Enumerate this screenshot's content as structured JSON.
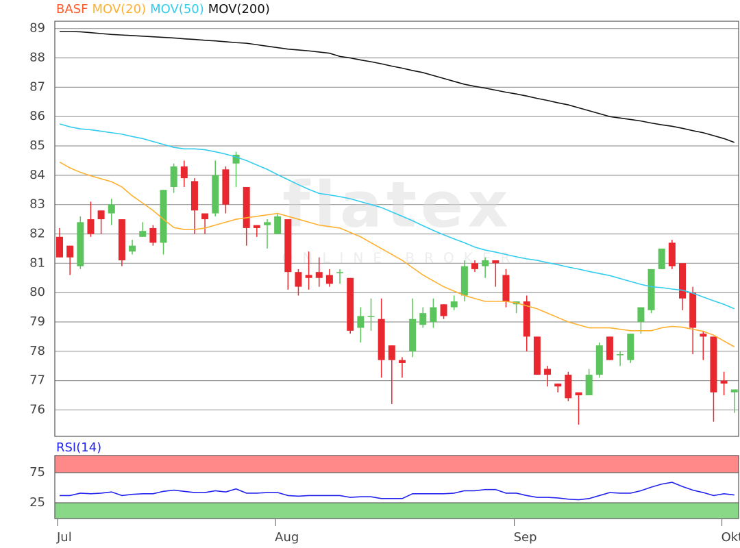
{
  "chart_data": [
    {
      "type": "candlestick",
      "watermark": {
        "brand": "flatex",
        "tagline": "ONLINE BROKER"
      },
      "categories": [
        "Jul",
        null,
        null,
        null,
        null,
        null,
        null,
        null,
        null,
        null,
        null,
        null,
        null,
        null,
        null,
        null,
        null,
        null,
        null,
        null,
        null,
        "Aug",
        null,
        null,
        null,
        null,
        null,
        null,
        null,
        null,
        null,
        null,
        null,
        null,
        null,
        null,
        null,
        null,
        null,
        null,
        null,
        null,
        null,
        null,
        "Sep",
        null,
        null,
        null,
        null,
        null,
        null,
        null,
        null,
        null,
        null,
        null,
        null,
        null,
        null,
        null,
        null,
        null,
        null,
        null,
        "Okt",
        null
      ],
      "ylim": [
        75.1,
        89.25
      ],
      "yticks": [
        76,
        77,
        78,
        79,
        80,
        81,
        82,
        83,
        84,
        85,
        86,
        87,
        88,
        89
      ],
      "grid": true,
      "series": [
        {
          "name": "BASF",
          "color": "#ff5a2a",
          "up_color": "#5cc45c",
          "down_color": "#e8282e",
          "open": [
            81.9,
            81.6,
            80.9,
            82.5,
            82.8,
            82.7,
            82.5,
            81.4,
            81.9,
            82.2,
            81.7,
            83.6,
            84.3,
            83.8,
            82.7,
            82.7,
            84.2,
            84.4,
            83.6,
            82.3,
            82.3,
            82.0,
            82.5,
            80.7,
            80.6,
            80.7,
            80.6,
            80.7,
            80.5,
            78.8,
            79.2,
            79.1,
            78.2,
            77.7,
            78.0,
            78.9,
            79.0,
            79.6,
            79.5,
            79.9,
            81.0,
            80.9,
            81.1,
            80.6,
            79.6,
            79.7,
            78.5,
            77.4,
            76.9,
            77.2,
            76.6,
            76.5,
            77.2,
            78.5,
            77.9,
            77.7,
            79.0,
            79.4,
            80.8,
            81.7,
            81.0,
            80.0,
            78.6,
            78.5,
            77.0,
            76.6
          ],
          "high": [
            82.2,
            81.6,
            82.6,
            83.1,
            82.8,
            83.2,
            82.5,
            81.8,
            82.4,
            82.3,
            83.5,
            84.4,
            84.5,
            83.9,
            82.7,
            84.5,
            84.3,
            84.8,
            83.6,
            82.3,
            82.5,
            82.7,
            82.5,
            80.8,
            81.4,
            81.2,
            80.8,
            80.8,
            80.5,
            79.5,
            79.8,
            79.8,
            78.2,
            77.8,
            79.8,
            79.5,
            79.8,
            79.6,
            79.9,
            81.1,
            81.1,
            81.2,
            81.1,
            80.8,
            79.7,
            79.9,
            78.5,
            77.5,
            76.9,
            77.3,
            76.6,
            77.4,
            78.3,
            78.5,
            78.0,
            78.6,
            79.5,
            80.8,
            81.5,
            81.8,
            81.0,
            80.2,
            78.7,
            78.5,
            77.3,
            76.7
          ],
          "low": [
            81.2,
            80.6,
            80.8,
            81.9,
            82.0,
            82.3,
            80.9,
            81.3,
            81.9,
            81.6,
            81.3,
            83.4,
            83.6,
            82.0,
            82.0,
            82.6,
            82.7,
            83.6,
            81.6,
            81.9,
            81.5,
            82.0,
            80.1,
            79.9,
            80.1,
            80.2,
            80.2,
            80.3,
            78.6,
            78.3,
            78.7,
            77.1,
            76.2,
            77.1,
            77.8,
            78.8,
            78.8,
            79.1,
            79.4,
            79.7,
            80.7,
            80.5,
            80.2,
            79.5,
            79.3,
            78.0,
            77.2,
            76.8,
            76.6,
            76.3,
            75.5,
            76.5,
            77.1,
            77.7,
            77.5,
            77.6,
            78.6,
            79.3,
            80.8,
            80.8,
            79.4,
            77.9,
            77.7,
            75.6,
            76.5,
            75.9
          ],
          "close": [
            81.2,
            81.2,
            82.4,
            82.0,
            82.5,
            83.0,
            81.1,
            81.6,
            82.1,
            81.7,
            83.5,
            84.3,
            83.9,
            82.8,
            82.5,
            84.0,
            83.0,
            84.7,
            82.2,
            82.2,
            82.4,
            82.6,
            80.7,
            80.2,
            80.5,
            80.5,
            80.3,
            80.7,
            78.7,
            79.2,
            79.2,
            77.7,
            77.7,
            77.6,
            79.1,
            79.3,
            79.5,
            79.2,
            79.7,
            80.9,
            80.8,
            81.1,
            81.0,
            79.7,
            79.7,
            78.5,
            77.2,
            77.2,
            76.8,
            76.4,
            76.5,
            77.2,
            78.2,
            77.7,
            77.9,
            78.6,
            79.5,
            80.8,
            81.5,
            80.9,
            79.8,
            78.8,
            78.5,
            76.6,
            76.9,
            76.7
          ]
        },
        {
          "name": "MOV(20)",
          "color": "#ffb030",
          "values": [
            84.45,
            84.25,
            84.1,
            83.98,
            83.88,
            83.78,
            83.6,
            83.3,
            83.05,
            82.8,
            82.5,
            82.22,
            82.15,
            82.15,
            82.2,
            82.3,
            82.4,
            82.5,
            82.55,
            82.6,
            82.65,
            82.7,
            82.6,
            82.5,
            82.4,
            82.3,
            82.25,
            82.2,
            82.05,
            81.9,
            81.7,
            81.5,
            81.3,
            81.1,
            80.85,
            80.6,
            80.4,
            80.2,
            80.05,
            79.9,
            79.8,
            79.7,
            79.7,
            79.7,
            79.65,
            79.55,
            79.45,
            79.3,
            79.15,
            79.0,
            78.9,
            78.8,
            78.8,
            78.8,
            78.75,
            78.7,
            78.7,
            78.7,
            78.8,
            78.85,
            78.82,
            78.75,
            78.68,
            78.55,
            78.35,
            78.15
          ]
        },
        {
          "name": "MOV(50)",
          "color": "#33ccee",
          "values": [
            85.75,
            85.65,
            85.58,
            85.55,
            85.5,
            85.45,
            85.4,
            85.32,
            85.25,
            85.15,
            85.05,
            84.95,
            84.9,
            84.9,
            84.87,
            84.8,
            84.72,
            84.62,
            84.5,
            84.35,
            84.2,
            84.02,
            83.85,
            83.68,
            83.52,
            83.38,
            83.33,
            83.27,
            83.2,
            83.1,
            83.0,
            82.9,
            82.75,
            82.6,
            82.45,
            82.28,
            82.12,
            81.97,
            81.83,
            81.7,
            81.55,
            81.45,
            81.38,
            81.3,
            81.22,
            81.15,
            81.1,
            81.02,
            80.95,
            80.87,
            80.8,
            80.72,
            80.65,
            80.58,
            80.48,
            80.38,
            80.28,
            80.2,
            80.17,
            80.12,
            80.08,
            79.98,
            79.85,
            79.72,
            79.6,
            79.45
          ]
        },
        {
          "name": "MOV(200)",
          "color": "#111111",
          "values": [
            88.9,
            88.9,
            88.89,
            88.86,
            88.83,
            88.8,
            88.78,
            88.76,
            88.74,
            88.72,
            88.7,
            88.68,
            88.65,
            88.63,
            88.6,
            88.58,
            88.55,
            88.52,
            88.5,
            88.45,
            88.4,
            88.35,
            88.3,
            88.27,
            88.24,
            88.2,
            88.16,
            88.05,
            88.0,
            87.93,
            87.87,
            87.8,
            87.72,
            87.65,
            87.57,
            87.5,
            87.4,
            87.3,
            87.2,
            87.1,
            87.03,
            86.97,
            86.9,
            86.83,
            86.77,
            86.7,
            86.62,
            86.55,
            86.47,
            86.4,
            86.3,
            86.2,
            86.1,
            86.0,
            85.95,
            85.9,
            85.85,
            85.78,
            85.72,
            85.67,
            85.6,
            85.52,
            85.45,
            85.35,
            85.25,
            85.12
          ]
        }
      ]
    },
    {
      "type": "line",
      "ylim": [
        0,
        100
      ],
      "yticks": [
        25,
        75
      ],
      "band_colors": [
        "#88d888",
        "#ff8888"
      ],
      "series": [
        {
          "name": "RSI(14)",
          "color": "#2222ee",
          "values": [
            37,
            37,
            41,
            40,
            41,
            43,
            37,
            39,
            40,
            40,
            44,
            46,
            44,
            42,
            42,
            45,
            43,
            48,
            41,
            41,
            42,
            42,
            37,
            36,
            37,
            37,
            37,
            37,
            34,
            35,
            35,
            32,
            32,
            32,
            40,
            40,
            40,
            40,
            41,
            45,
            45,
            47,
            47,
            41,
            41,
            37,
            34,
            34,
            33,
            31,
            30,
            32,
            37,
            42,
            41,
            41,
            45,
            51,
            56,
            59,
            52,
            46,
            42,
            37,
            40,
            38
          ]
        }
      ]
    }
  ]
}
